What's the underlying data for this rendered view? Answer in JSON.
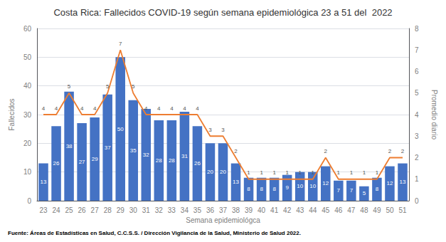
{
  "chart_data": {
    "type": "bar",
    "title": "Costa Rica: Fallecidos COVID-19 según semana epidemiológica 23 a 51 del  2022",
    "xlabel": "Semana epidemiológca",
    "ylabel": "Fallecidos",
    "y2label": "Promedio diario",
    "annotations": [
      "Fuente: Áreas de Estadísticas en Salud, C.C.S.S. / Dirección Vigilancia de la Salud, Ministerio de Salud 2022."
    ],
    "categories": [
      "23",
      "24",
      "25",
      "26",
      "27",
      "28",
      "29",
      "30",
      "31",
      "32",
      "33",
      "34",
      "35",
      "36",
      "37",
      "38",
      "39",
      "40",
      "41",
      "42",
      "43",
      "44",
      "45",
      "46",
      "47",
      "48",
      "49",
      "50",
      "51"
    ],
    "series": [
      {
        "type": "bar",
        "color": "#4472C4",
        "data_labels": true,
        "values": [
          13,
          26,
          38,
          27,
          29,
          37,
          50,
          35,
          32,
          28,
          28,
          31,
          26,
          20,
          20,
          13,
          8,
          8,
          8,
          9,
          10,
          10,
          12,
          7,
          7,
          5,
          8,
          12,
          13
        ]
      },
      {
        "type": "line",
        "color": "#ED7D31",
        "axis": "y2",
        "data_labels": true,
        "values": [
          4,
          4,
          5,
          4,
          4,
          5,
          7,
          5,
          4,
          4,
          4,
          4,
          4,
          3,
          3,
          2,
          1,
          1,
          1,
          1,
          1,
          1,
          2,
          1,
          1,
          1,
          1,
          2,
          2
        ]
      }
    ],
    "ylim": [
      0,
      60
    ],
    "yticks": [
      0,
      10,
      20,
      30,
      40,
      50,
      60
    ],
    "y2lim": [
      0,
      8
    ],
    "y2ticks": [
      0,
      1,
      2,
      3,
      4,
      5,
      6,
      7,
      8
    ],
    "grid": true
  }
}
